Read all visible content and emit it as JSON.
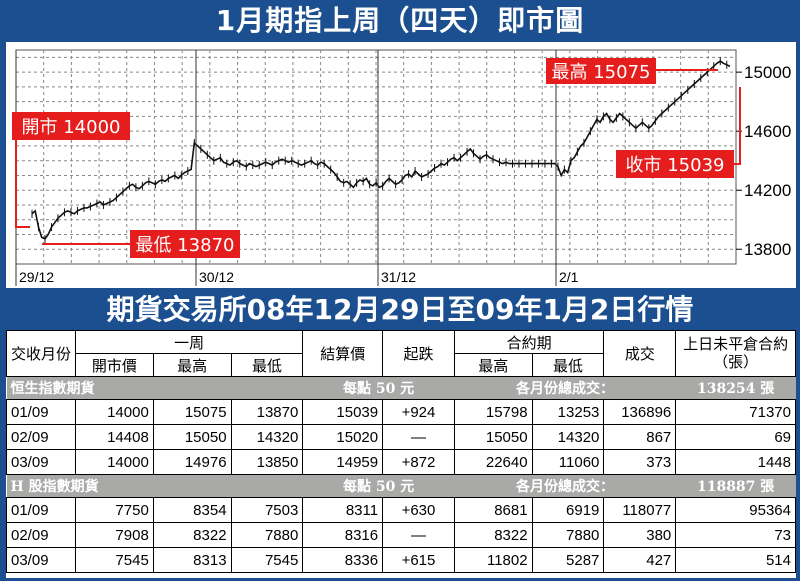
{
  "title": "1月期指上周（四天）即市圖",
  "subtitle": "期貨交易所08年12月29日至09年1月2日行情",
  "chart_data": {
    "type": "line",
    "ylim": [
      13700,
      15150
    ],
    "yticks": [
      13800,
      14200,
      14600,
      15000
    ],
    "day_labels": [
      "29/12",
      "30/12",
      "31/12",
      "2/1"
    ],
    "annotations": {
      "open": "開市 14000",
      "high": "最高 15075",
      "low": "最低 13870",
      "close": "收市 15039"
    },
    "series": [
      {
        "values": [
          14040,
          14060,
          13950,
          13880,
          13870,
          13900,
          13950,
          13980,
          14010,
          14030,
          14050,
          14060,
          14050,
          14040,
          14060,
          14070,
          14080,
          14080,
          14090,
          14100,
          14110,
          14120,
          14100,
          14110,
          14120,
          14130,
          14150,
          14170,
          14190,
          14210,
          14230,
          14240,
          14220,
          14210,
          14230,
          14250,
          14260,
          14250,
          14240,
          14260,
          14270,
          14260,
          14280,
          14290,
          14300,
          14280,
          14300,
          14320,
          14330,
          14340,
          14520,
          14500,
          14480,
          14460,
          14440,
          14420,
          14400,
          14410,
          14420,
          14390,
          14380,
          14370,
          14390,
          14400,
          14380,
          14370,
          14360,
          14380,
          14370,
          14360,
          14370,
          14380,
          14390,
          14380,
          14370,
          14390,
          14400,
          14410,
          14400,
          14390,
          14400,
          14390,
          14380,
          14370,
          14380,
          14390,
          14400,
          14380,
          14370,
          14390,
          14380,
          14360,
          14340,
          14320,
          14290,
          14260,
          14250,
          14260,
          14240,
          14220,
          14250,
          14270,
          14260,
          14280,
          14240,
          14230,
          14250,
          14220,
          14230,
          14260,
          14280,
          14260,
          14240,
          14250,
          14270,
          14300,
          14310,
          14290,
          14330,
          14310,
          14290,
          14300,
          14310,
          14330,
          14350,
          14360,
          14380,
          14370,
          14390,
          14410,
          14420,
          14400,
          14420,
          14440,
          14460,
          14480,
          14450,
          14430,
          14410,
          14430,
          14440,
          14420,
          14410,
          14400,
          14390,
          14380,
          14390,
          14380,
          14380,
          14380,
          14380,
          14380,
          14380,
          14380,
          14380,
          14380,
          14380,
          14380,
          14380,
          14380,
          14380,
          14380,
          14360,
          14300,
          14340,
          14320,
          14400,
          14420,
          14460,
          14500,
          14520,
          14560,
          14600,
          14640,
          14680,
          14660,
          14700,
          14720,
          14680,
          14660,
          14690,
          14720,
          14700,
          14680,
          14660,
          14640,
          14620,
          14640,
          14660,
          14640,
          14620,
          14640,
          14670,
          14700,
          14720,
          14740,
          14760,
          14780,
          14800,
          14820,
          14840,
          14860,
          14880,
          14900,
          14920,
          14940,
          14960,
          14980,
          15000,
          15020,
          15040,
          15060,
          15075,
          15060,
          15050,
          15039
        ]
      }
    ],
    "markers": {
      "open": 14000,
      "high": 15075,
      "low": 13870,
      "close": 15039
    }
  },
  "table": {
    "headers": {
      "month": "交收月份",
      "week": "一周",
      "open": "開市價",
      "high": "最高",
      "low": "最低",
      "settle": "結算價",
      "change": "起跌",
      "contract": "合約期",
      "c_high": "最高",
      "c_low": "最低",
      "volume": "成交",
      "oi": "上日未平倉合約（張）"
    },
    "sections": [
      {
        "name": "恒生指數期貨",
        "point": "每點 50 元",
        "total_label": "各月份總成交：",
        "total": "138254 張",
        "rows": [
          [
            "01/09",
            "14000",
            "15075",
            "13870",
            "15039",
            "+924",
            "15798",
            "13253",
            "136896",
            "71370"
          ],
          [
            "02/09",
            "14408",
            "15050",
            "14320",
            "15020",
            "—",
            "15050",
            "14320",
            "867",
            "69"
          ],
          [
            "03/09",
            "14000",
            "14976",
            "13850",
            "14959",
            "+872",
            "22640",
            "11060",
            "373",
            "1448"
          ]
        ]
      },
      {
        "name": "H 股指數期貨",
        "point": "每點 50 元",
        "total_label": "各月份總成交：",
        "total": "118887 張",
        "rows": [
          [
            "01/09",
            "7750",
            "8354",
            "7503",
            "8311",
            "+630",
            "8681",
            "6919",
            "118077",
            "95364"
          ],
          [
            "02/09",
            "7908",
            "8322",
            "7880",
            "8316",
            "—",
            "8322",
            "7880",
            "380",
            "73"
          ],
          [
            "03/09",
            "7545",
            "8313",
            "7545",
            "8336",
            "+615",
            "11802",
            "5287",
            "427",
            "514"
          ]
        ]
      }
    ]
  }
}
